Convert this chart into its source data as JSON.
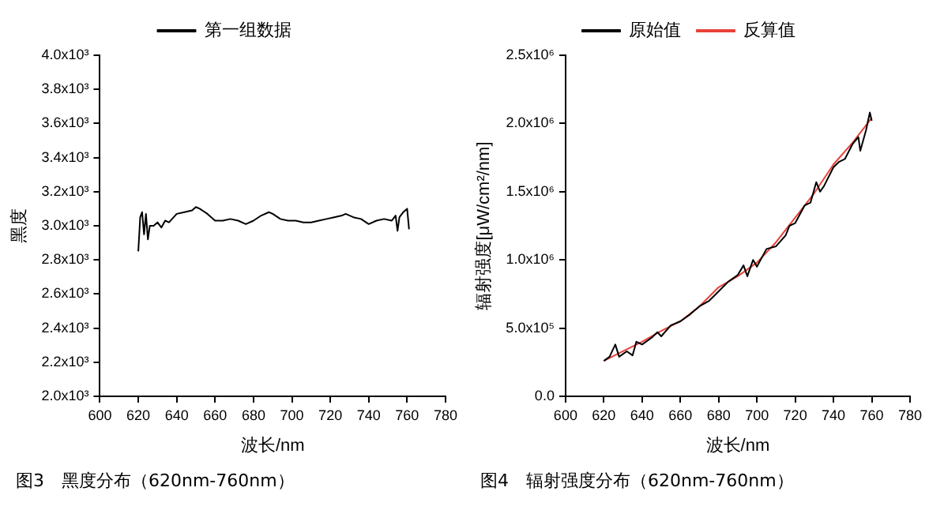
{
  "chart_data": [
    {
      "type": "line",
      "xlabel": "波长/nm",
      "ylabel": "黑度",
      "annotations": [
        "图3　黑度分布（620nm-760nm）"
      ],
      "legend": "top",
      "grid": false,
      "marker": "none",
      "line_style": "solid",
      "xlim": [
        600,
        780
      ],
      "xticks": [
        600,
        620,
        640,
        660,
        680,
        700,
        720,
        740,
        760,
        780
      ],
      "ylim": [
        2000,
        4000
      ],
      "yticks": [
        {
          "value": 2000,
          "label": "2.0x10³"
        },
        {
          "value": 2200,
          "label": "2.2x10³"
        },
        {
          "value": 2400,
          "label": "2.4x10³"
        },
        {
          "value": 2600,
          "label": "2.6x10³"
        },
        {
          "value": 2800,
          "label": "2.8x10³"
        },
        {
          "value": 3000,
          "label": "3.0x10³"
        },
        {
          "value": 3200,
          "label": "3.2x10³"
        },
        {
          "value": 3400,
          "label": "3.4x10³"
        },
        {
          "value": 3600,
          "label": "3.6x10³"
        },
        {
          "value": 3800,
          "label": "3.8x10³"
        },
        {
          "value": 4000,
          "label": "4.0x10³"
        }
      ],
      "series": [
        {
          "name": "第一组数据",
          "color": "#000000",
          "x": [
            620,
            621,
            622,
            623,
            624,
            625,
            626,
            628,
            630,
            632,
            634,
            636,
            640,
            644,
            648,
            650,
            652,
            656,
            660,
            664,
            668,
            672,
            676,
            680,
            684,
            688,
            690,
            694,
            698,
            702,
            706,
            710,
            714,
            718,
            722,
            726,
            728,
            732,
            736,
            740,
            744,
            748,
            752,
            754,
            755,
            756,
            758,
            760,
            761
          ],
          "values": [
            2850,
            3050,
            3080,
            2950,
            3070,
            2920,
            3000,
            3000,
            3020,
            2990,
            3030,
            3020,
            3070,
            3080,
            3090,
            3110,
            3100,
            3070,
            3030,
            3030,
            3040,
            3030,
            3010,
            3030,
            3060,
            3080,
            3070,
            3040,
            3030,
            3030,
            3020,
            3020,
            3030,
            3040,
            3050,
            3060,
            3070,
            3050,
            3040,
            3010,
            3030,
            3040,
            3030,
            3060,
            2970,
            3050,
            3080,
            3100,
            2980
          ]
        }
      ]
    },
    {
      "type": "line",
      "xlabel": "波长/nm",
      "ylabel": "辐射强度[μW/cm²/nm]",
      "annotations": [
        "图4　辐射强度分布（620nm-760nm）"
      ],
      "legend": "top",
      "grid": false,
      "marker": "none",
      "line_style": "solid",
      "xlim": [
        600,
        780
      ],
      "xticks": [
        600,
        620,
        640,
        660,
        680,
        700,
        720,
        740,
        760,
        780
      ],
      "ylim": [
        0,
        2500000
      ],
      "yticks": [
        {
          "value": 0,
          "label": "0.0"
        },
        {
          "value": 500000,
          "label": "5.0x10⁵"
        },
        {
          "value": 1000000,
          "label": "1.0x10⁶"
        },
        {
          "value": 1500000,
          "label": "1.5x10⁶"
        },
        {
          "value": 2000000,
          "label": "2.0x10⁶"
        },
        {
          "value": 2500000,
          "label": "2.5x10⁶"
        }
      ],
      "series": [
        {
          "name": "原始值",
          "color": "#000000",
          "x": [
            620,
            623,
            626,
            628,
            632,
            635,
            637,
            640,
            645,
            648,
            650,
            655,
            660,
            665,
            670,
            675,
            680,
            685,
            690,
            693,
            695,
            698,
            700,
            705,
            710,
            715,
            717,
            720,
            725,
            728,
            731,
            733,
            735,
            740,
            743,
            746,
            750,
            753,
            754,
            757,
            759,
            760
          ],
          "values": [
            260000,
            290000,
            380000,
            290000,
            330000,
            300000,
            400000,
            380000,
            430000,
            470000,
            440000,
            520000,
            550000,
            600000,
            660000,
            700000,
            770000,
            840000,
            890000,
            960000,
            880000,
            1000000,
            950000,
            1080000,
            1100000,
            1180000,
            1250000,
            1270000,
            1400000,
            1420000,
            1570000,
            1500000,
            1540000,
            1680000,
            1720000,
            1740000,
            1850000,
            1900000,
            1800000,
            1950000,
            2080000,
            2020000
          ]
        },
        {
          "name": "反算值",
          "color": "#e8413a",
          "x": [
            620,
            630,
            640,
            650,
            660,
            670,
            680,
            690,
            700,
            710,
            720,
            730,
            740,
            750,
            760
          ],
          "values": [
            260000,
            330000,
            400000,
            480000,
            550000,
            660000,
            800000,
            880000,
            980000,
            1130000,
            1310000,
            1490000,
            1700000,
            1860000,
            2040000
          ]
        }
      ]
    }
  ]
}
